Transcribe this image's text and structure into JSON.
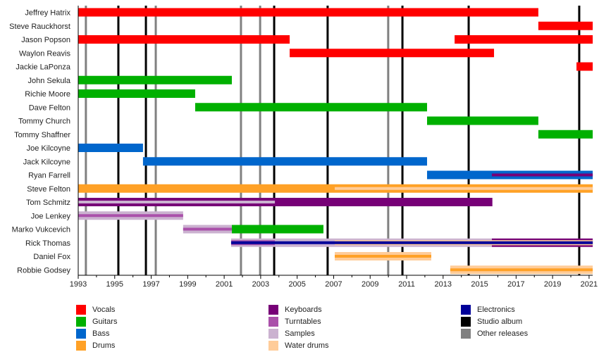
{
  "chart_data": {
    "type": "timeline",
    "title": "",
    "xlim": [
      1993,
      2021.2
    ],
    "x_ticks": [
      1993,
      1995,
      1997,
      1999,
      2001,
      2003,
      2005,
      2007,
      2009,
      2011,
      2013,
      2015,
      2017,
      2019,
      2021
    ],
    "colors": {
      "vocals": "#ff0000",
      "guitars": "#00b000",
      "bass": "#0066cc",
      "drums": "#ffa126",
      "keyboards": "#770077",
      "turntables": "#aa50aa",
      "samples": "#cbb2d0",
      "water_drums": "#ffcc99",
      "electronics": "#000099",
      "studio_album": "#000000",
      "other_releases": "#808080"
    },
    "members": [
      {
        "name": "Jeffrey Hatrix",
        "bars": [
          {
            "role": "vocals",
            "from": 1993,
            "to": 2018.22,
            "layer": "full"
          }
        ]
      },
      {
        "name": "Steve Rauckhorst",
        "bars": [
          {
            "role": "vocals",
            "from": 2018.22,
            "to": 2021.2,
            "layer": "full"
          }
        ]
      },
      {
        "name": "Jason Popson",
        "bars": [
          {
            "role": "vocals",
            "from": 1993,
            "to": 2004.59,
            "layer": "full"
          },
          {
            "role": "vocals",
            "from": 2013.63,
            "to": 2021.2,
            "layer": "full"
          }
        ]
      },
      {
        "name": "Waylon Reavis",
        "bars": [
          {
            "role": "vocals",
            "from": 2004.59,
            "to": 2015.79,
            "layer": "full"
          }
        ]
      },
      {
        "name": "Jackie LaPonza",
        "bars": [
          {
            "role": "vocals",
            "from": 2020.31,
            "to": 2021.2,
            "layer": "full"
          }
        ]
      },
      {
        "name": "John Sekula",
        "bars": [
          {
            "role": "guitars",
            "from": 1993,
            "to": 2001.42,
            "layer": "full"
          }
        ]
      },
      {
        "name": "Richie Moore",
        "bars": [
          {
            "role": "guitars",
            "from": 1993,
            "to": 1999.41,
            "layer": "full"
          }
        ]
      },
      {
        "name": "Dave Felton",
        "bars": [
          {
            "role": "guitars",
            "from": 1999.41,
            "to": 2012.12,
            "layer": "full"
          }
        ]
      },
      {
        "name": "Tommy Church",
        "bars": [
          {
            "role": "guitars",
            "from": 2012.12,
            "to": 2018.22,
            "layer": "full"
          }
        ]
      },
      {
        "name": "Tommy Shaffner",
        "bars": [
          {
            "role": "guitars",
            "from": 2018.22,
            "to": 2021.2,
            "layer": "full"
          }
        ]
      },
      {
        "name": "Joe Kilcoyne",
        "bars": [
          {
            "role": "bass",
            "from": 1993,
            "to": 1996.55,
            "layer": "full"
          }
        ]
      },
      {
        "name": "Jack Kilcoyne",
        "bars": [
          {
            "role": "bass",
            "from": 1996.55,
            "to": 2012.12,
            "layer": "full"
          }
        ]
      },
      {
        "name": "Ryan Farrell",
        "bars": [
          {
            "role": "bass",
            "from": 2012.12,
            "to": 2021.2,
            "layer": "full"
          },
          {
            "role": "keyboards",
            "from": 2015.67,
            "to": 2021.2,
            "layer": "thin"
          }
        ]
      },
      {
        "name": "Steve Felton",
        "bars": [
          {
            "role": "drums",
            "from": 1993,
            "to": 2021.2,
            "layer": "full"
          },
          {
            "role": "water_drums",
            "from": 2007.06,
            "to": 2021.2,
            "layer": "thin"
          }
        ]
      },
      {
        "name": "Tom Schmitz",
        "bars": [
          {
            "role": "keyboards",
            "from": 1993,
            "to": 2015.7,
            "layer": "full"
          },
          {
            "role": "samples",
            "from": 1993,
            "to": 2003.78,
            "layer": "thin"
          }
        ]
      },
      {
        "name": "Joe Lenkey",
        "bars": [
          {
            "role": "samples",
            "from": 1993,
            "to": 1998.75,
            "layer": "full"
          },
          {
            "role": "turntables",
            "from": 1993,
            "to": 1998.75,
            "layer": "thin"
          }
        ]
      },
      {
        "name": "Marko Vukcevich",
        "bars": [
          {
            "role": "samples",
            "from": 1998.75,
            "to": 2001.42,
            "layer": "full"
          },
          {
            "role": "turntables",
            "from": 1998.75,
            "to": 2001.42,
            "layer": "thin"
          },
          {
            "role": "guitars",
            "from": 2001.42,
            "to": 2006.44,
            "layer": "full"
          }
        ]
      },
      {
        "name": "Rick Thomas",
        "bars": [
          {
            "role": "samples",
            "from": 2001.38,
            "to": 2015.67,
            "layer": "full"
          },
          {
            "role": "keyboards",
            "from": 2015.67,
            "to": 2021.2,
            "layer": "full"
          },
          {
            "role": "water_drums",
            "from": 2015.67,
            "to": 2021.2,
            "layer": "mid"
          },
          {
            "role": "turntables",
            "from": 2001.38,
            "to": 2003.78,
            "layer": "mid"
          },
          {
            "role": "water_drums",
            "from": 2007.06,
            "to": 2021.2,
            "layer": "mid"
          },
          {
            "role": "electronics",
            "from": 2001.38,
            "to": 2021.2,
            "layer": "thin"
          }
        ]
      },
      {
        "name": "Daniel Fox",
        "bars": [
          {
            "role": "water_drums",
            "from": 2007.06,
            "to": 2012.35,
            "layer": "full"
          },
          {
            "role": "drums",
            "from": 2007.06,
            "to": 2012.35,
            "layer": "thin"
          }
        ]
      },
      {
        "name": "Robbie Godsey",
        "bars": [
          {
            "role": "water_drums",
            "from": 2013.39,
            "to": 2021.2,
            "layer": "full"
          },
          {
            "role": "drums",
            "from": 2013.39,
            "to": 2021.2,
            "layer": "thin"
          }
        ]
      }
    ],
    "studio_albums": [
      1995.2,
      1996.71,
      2003.74,
      2006.67,
      2010.77,
      2014.4,
      2020.46
    ],
    "other_releases": [
      1993.42,
      1997.25,
      2001.92,
      2002.97,
      2009.99
    ],
    "legend_placement": "bottom",
    "legend": [
      {
        "key": "vocals",
        "label": "Vocals"
      },
      {
        "key": "guitars",
        "label": "Guitars"
      },
      {
        "key": "bass",
        "label": "Bass"
      },
      {
        "key": "drums",
        "label": "Drums"
      },
      {
        "key": "keyboards",
        "label": "Keyboards"
      },
      {
        "key": "turntables",
        "label": "Turntables"
      },
      {
        "key": "samples",
        "label": "Samples"
      },
      {
        "key": "water_drums",
        "label": "Water drums"
      },
      {
        "key": "electronics",
        "label": "Electronics"
      },
      {
        "key": "studio_album",
        "label": "Studio album"
      },
      {
        "key": "other_releases",
        "label": "Other releases"
      }
    ]
  }
}
